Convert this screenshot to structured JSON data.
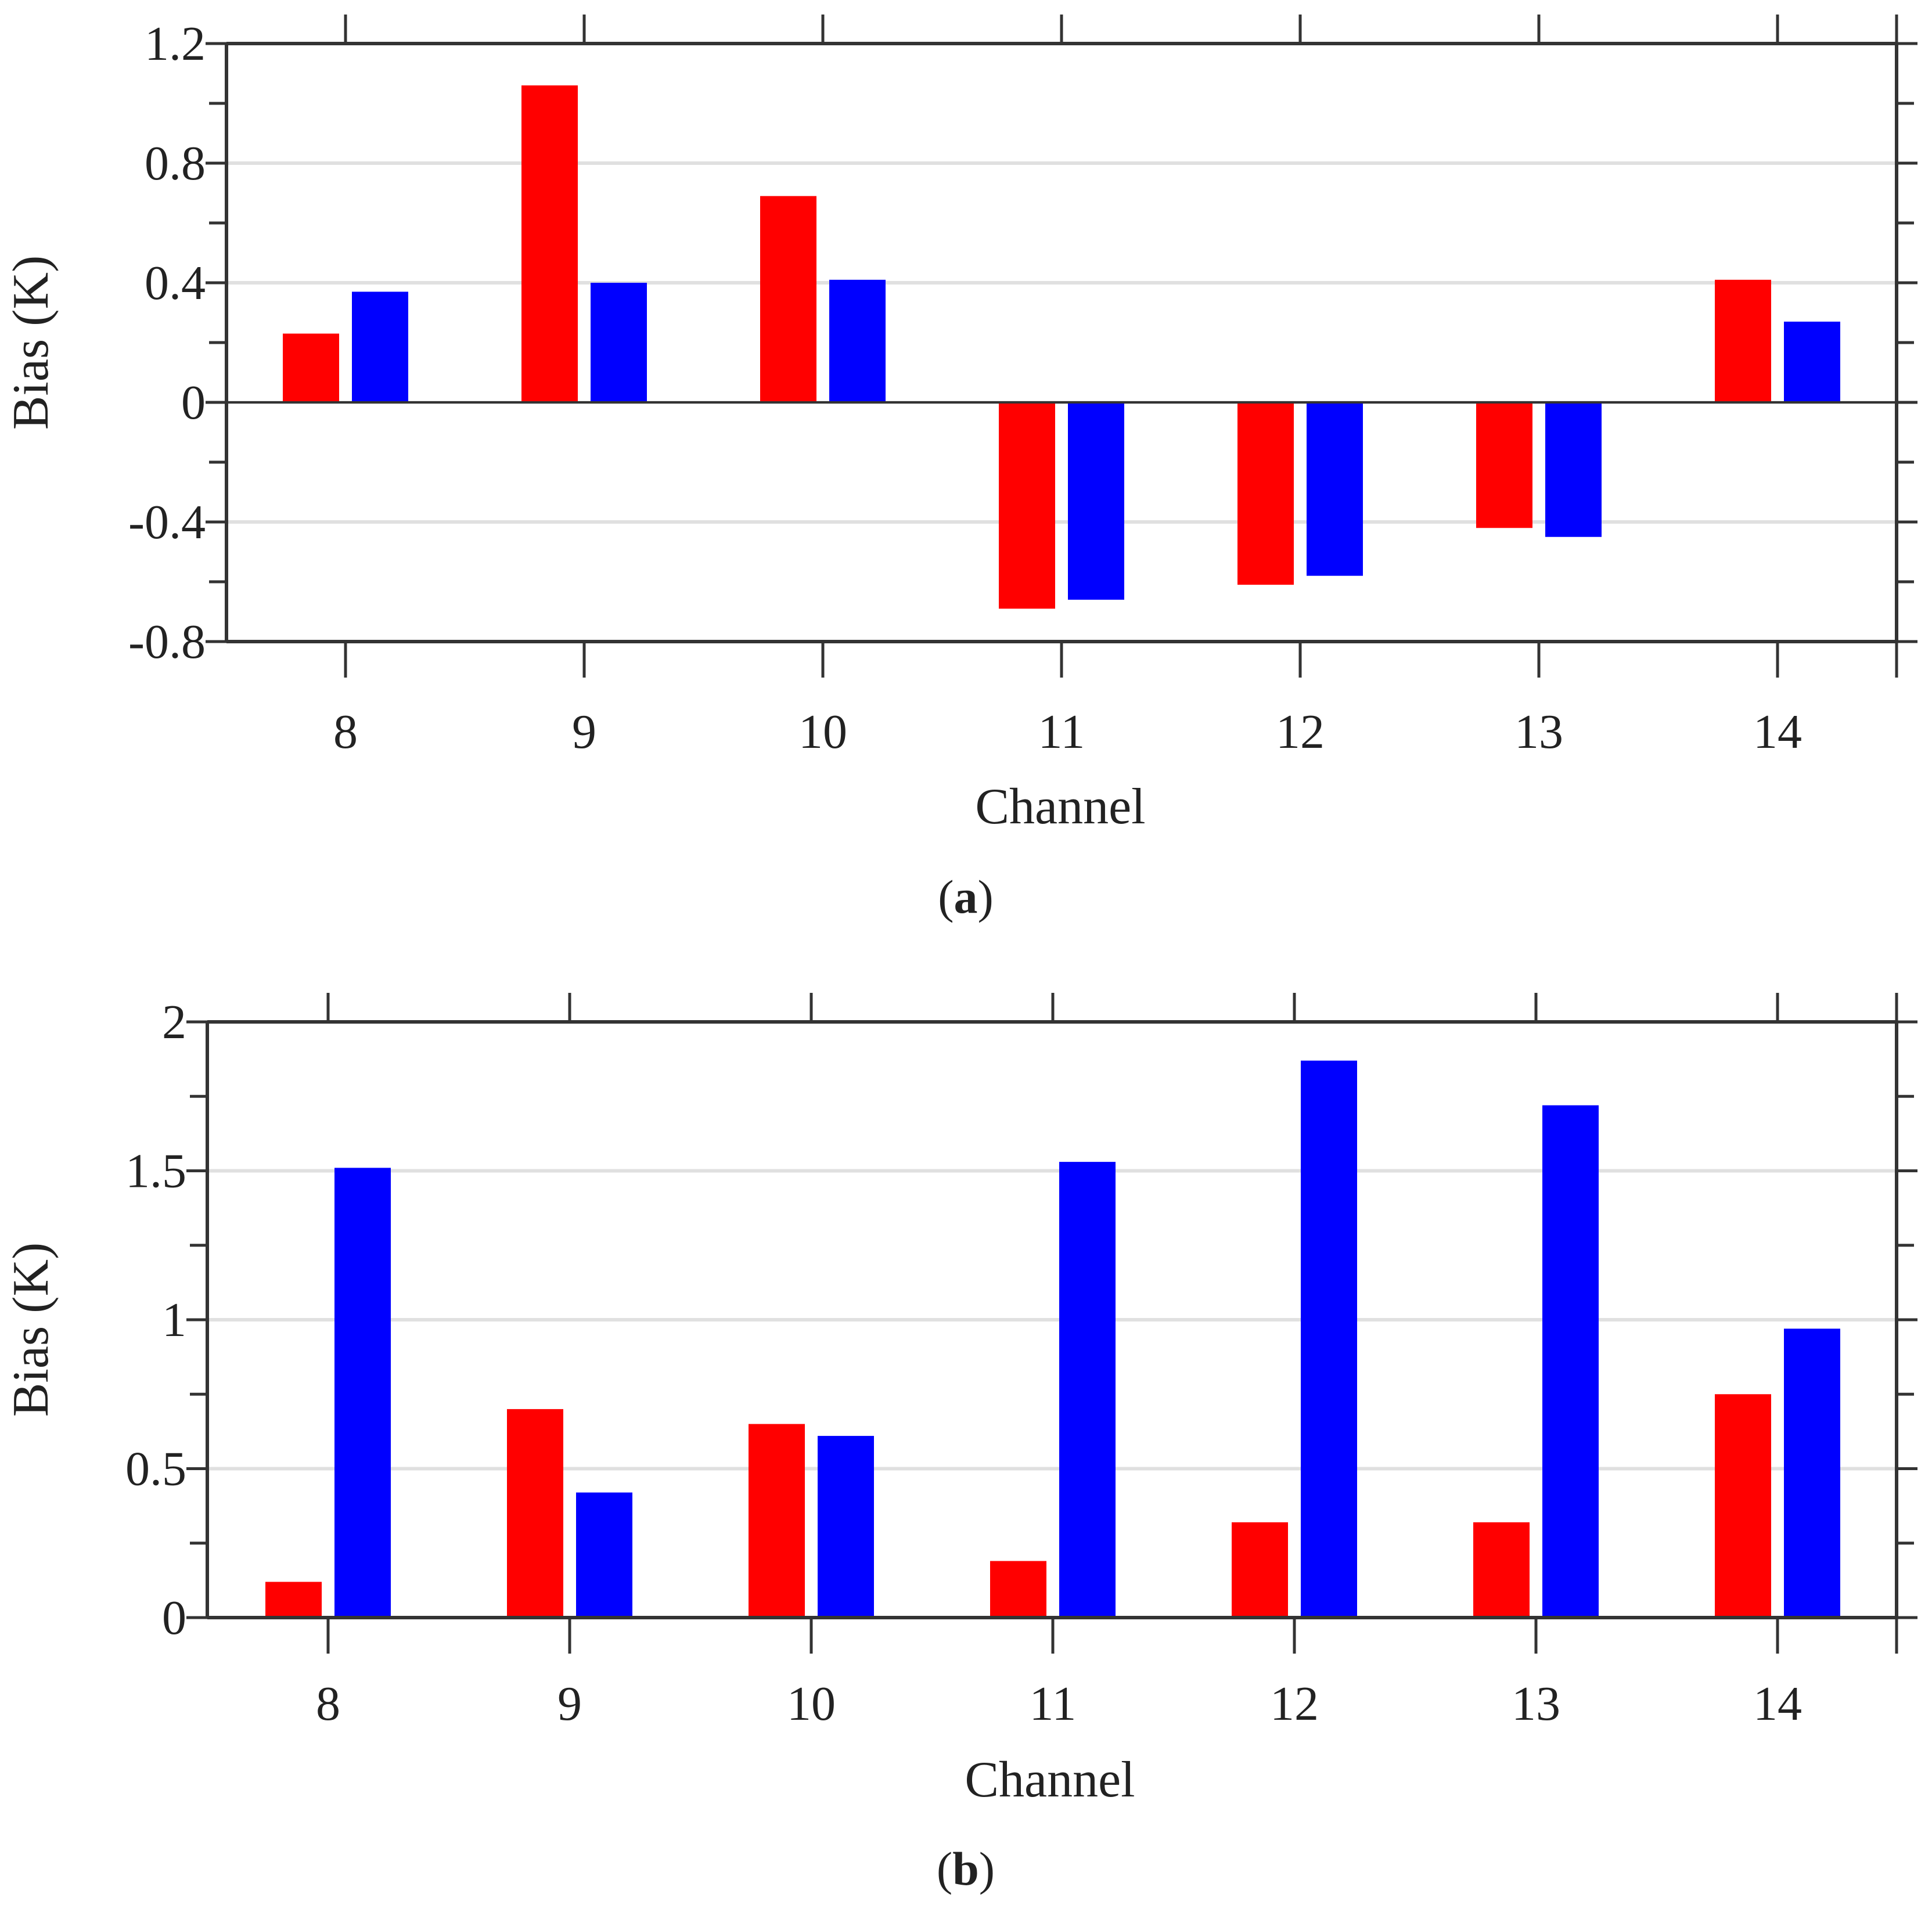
{
  "colors": {
    "series_red": "#ff0000",
    "series_blue": "#0000ff",
    "axis": "#333333",
    "grid": "#e0e0e0"
  },
  "chart_data": [
    {
      "id": "a",
      "type": "bar",
      "caption_letter": "a",
      "categories": [
        "8",
        "9",
        "10",
        "11",
        "12",
        "13",
        "14"
      ],
      "series": [
        {
          "name": "red",
          "color": "#ff0000",
          "values": [
            0.23,
            1.06,
            0.69,
            -0.69,
            -0.61,
            -0.42,
            0.41
          ]
        },
        {
          "name": "blue",
          "color": "#0000ff",
          "values": [
            0.37,
            0.4,
            0.41,
            -0.66,
            -0.58,
            -0.45,
            0.27
          ]
        }
      ],
      "xlabel": "Channel",
      "ylabel": "Bias (K)",
      "ylim": [
        -0.8,
        1.2
      ],
      "yticks": [
        "-0.8",
        "-0.4",
        "0",
        "0.4",
        "0.8",
        "1.2"
      ],
      "ytick_values": [
        -0.8,
        -0.4,
        0,
        0.4,
        0.8,
        1.2
      ],
      "grid": true
    },
    {
      "id": "b",
      "type": "bar",
      "caption_letter": "b",
      "categories": [
        "8",
        "9",
        "10",
        "11",
        "12",
        "13",
        "14"
      ],
      "series": [
        {
          "name": "red",
          "color": "#ff0000",
          "values": [
            0.12,
            0.7,
            0.65,
            0.19,
            0.32,
            0.32,
            0.75
          ]
        },
        {
          "name": "blue",
          "color": "#0000ff",
          "values": [
            1.51,
            0.42,
            0.61,
            1.53,
            1.87,
            1.72,
            0.97
          ]
        }
      ],
      "xlabel": "Channel",
      "ylabel": "Bias (K)",
      "ylim": [
        0,
        2
      ],
      "yticks": [
        "0",
        "0.5",
        "1",
        "1.5",
        "2"
      ],
      "ytick_values": [
        0,
        0.5,
        1,
        1.5,
        2
      ],
      "grid": true
    }
  ]
}
